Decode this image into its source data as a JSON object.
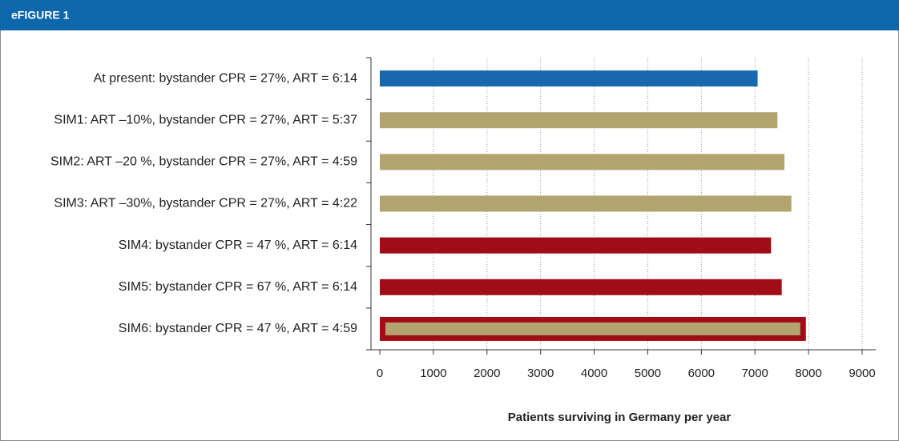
{
  "header": {
    "title": "eFIGURE 1"
  },
  "chart_data": {
    "type": "bar",
    "orientation": "horizontal",
    "categories": [
      "At present: bystander CPR = 27%, ART = 6:14",
      "SIM1: ART –10%, bystander CPR = 27%, ART = 5:37",
      "SIM2: ART –20 %, bystander CPR = 27%, ART = 4:59",
      "SIM3: ART –30%, bystander CPR = 27%, ART = 4:22",
      "SIM4: bystander CPR = 47 %, ART = 6:14",
      "SIM5: bystander CPR = 67 %, ART = 6:14",
      "SIM6: bystander CPR = 47 %, ART = 4:59"
    ],
    "values": [
      7050,
      7420,
      7550,
      7680,
      7300,
      7500,
      7950
    ],
    "colors": [
      "#1868ad",
      "#b3a46f",
      "#b3a46f",
      "#b3a46f",
      "#a10d16",
      "#a10d16",
      "#b3a46f"
    ],
    "edge_colors": [
      null,
      null,
      null,
      null,
      null,
      null,
      "#a10d16"
    ],
    "xlabel": "Patients surviving in Germany per year",
    "xlim": [
      0,
      9000
    ],
    "xticks": [
      0,
      1000,
      2000,
      3000,
      4000,
      5000,
      6000,
      7000,
      8000,
      9000
    ],
    "grid": true
  }
}
